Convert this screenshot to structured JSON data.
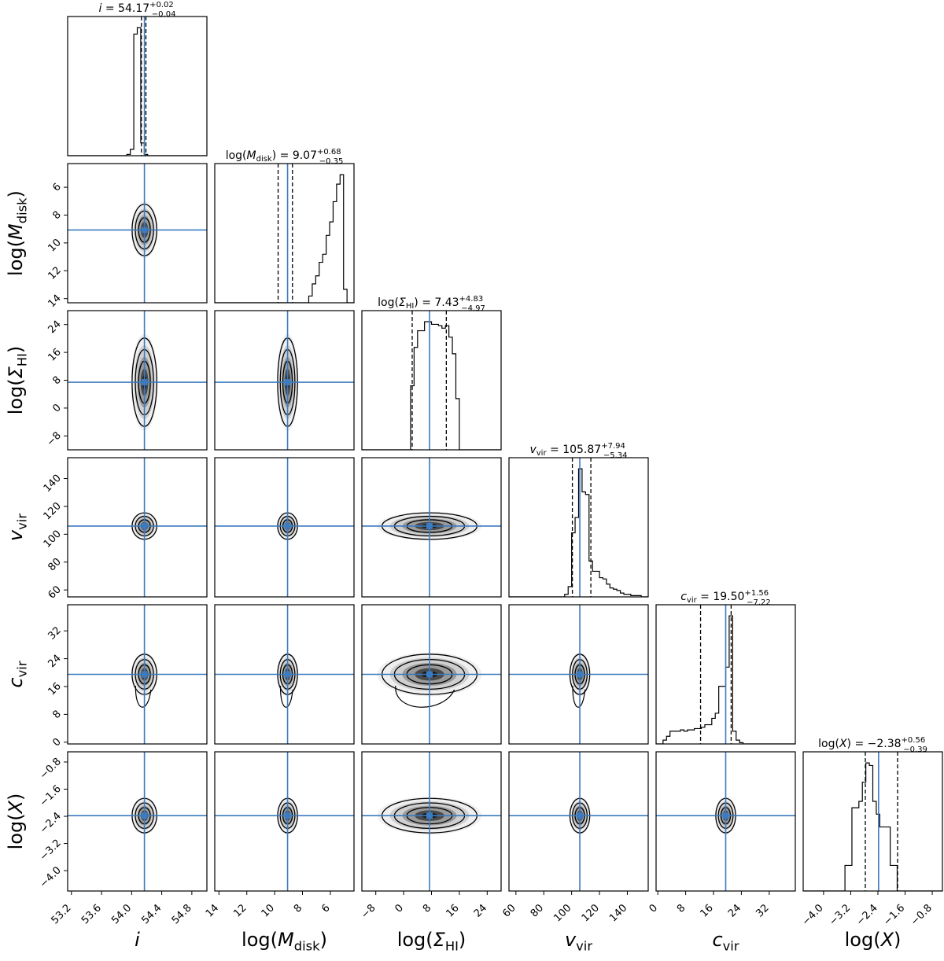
{
  "chart_data": {
    "type": "corner",
    "title": "",
    "truth_color": "#3b7bbf",
    "parameters": [
      {
        "key": "i",
        "base": "i",
        "sub": "",
        "wrap": "",
        "label_plain": "i",
        "ticks": [
          "53.2",
          "53.6",
          "54.0",
          "54.4",
          "54.8"
        ],
        "tick_values": [
          53.2,
          53.6,
          54.0,
          54.4,
          54.8
        ],
        "range": [
          53.15,
          55.0
        ],
        "reversed": false,
        "median": 54.17,
        "q16": 54.13,
        "q84": 54.19,
        "truth": 54.17,
        "title_text": "i = 54.17",
        "title_value": "= 54.17",
        "err_plus": "+0.02",
        "err_minus": "−0.04",
        "hist": [
          0,
          0,
          0,
          0,
          0,
          0,
          0,
          0,
          0,
          0,
          0,
          0,
          0,
          0,
          0,
          0,
          0,
          1,
          5,
          95,
          100,
          10,
          1,
          0,
          0,
          0,
          0,
          0,
          0,
          0,
          0,
          0,
          0,
          0,
          0,
          0,
          0,
          0,
          0,
          0
        ]
      },
      {
        "key": "mdisk",
        "base": "M",
        "sub": "disk",
        "wrap": "log",
        "label_plain": "log(M_disk)",
        "ticks": [
          "14",
          "12",
          "10",
          "8",
          "6"
        ],
        "tick_values": [
          14,
          12,
          10,
          8,
          6
        ],
        "range": [
          14.3,
          4.3
        ],
        "reversed": true,
        "median": 9.07,
        "q16": 9.75,
        "q84": 8.72,
        "truth": 9.07,
        "title_text": "log(M_disk) = 9.07",
        "title_value": "= 9.07",
        "err_plus": "+0.68",
        "err_minus": "−0.35",
        "hist": [
          0,
          0,
          0,
          0,
          0,
          0,
          0,
          0,
          0,
          0,
          0,
          0,
          0,
          0,
          0,
          0,
          0,
          0,
          0,
          0,
          0,
          0,
          0,
          0,
          0,
          0,
          0,
          5,
          14,
          20,
          30,
          36,
          50,
          60,
          75,
          88,
          95,
          10,
          0,
          0
        ]
      },
      {
        "key": "sigma",
        "base": "Σ",
        "sub": "HI",
        "wrap": "log",
        "label_plain": "log(Σ_HI)",
        "ticks": [
          "−8",
          "0",
          "8",
          "16",
          "24"
        ],
        "tick_values": [
          -8,
          0,
          8,
          16,
          24
        ],
        "range": [
          -12,
          28
        ],
        "reversed": false,
        "median": 7.43,
        "q16": 2.46,
        "q84": 12.26,
        "truth": 7.43,
        "title_text": "log(Σ_HI) = 7.43",
        "title_value": "= 7.43",
        "err_plus": "+4.83",
        "err_minus": "−4.97",
        "hist": [
          0,
          0,
          0,
          0,
          0,
          0,
          0,
          0,
          0,
          0,
          0,
          0,
          0,
          0,
          50,
          80,
          93,
          93,
          100,
          100,
          98,
          98,
          97,
          95,
          97,
          88,
          75,
          40,
          0,
          0,
          0,
          0,
          0,
          0,
          0,
          0,
          0,
          0,
          0,
          0
        ]
      },
      {
        "key": "vvir",
        "base": "v",
        "sub": "vir",
        "wrap": "",
        "label_plain": "v_vir",
        "ticks": [
          "60",
          "80",
          "100",
          "120",
          "140"
        ],
        "tick_values": [
          60,
          80,
          100,
          120,
          140
        ],
        "range": [
          55,
          155
        ],
        "reversed": false,
        "median": 105.87,
        "q16": 100.53,
        "q84": 113.81,
        "truth": 105.87,
        "title_text": "v_vir = 105.87",
        "title_value": "= 105.87",
        "err_plus": "+7.94",
        "err_minus": "−5.34",
        "hist": [
          0,
          0,
          0,
          0,
          0,
          0,
          0,
          0,
          0,
          0,
          0,
          0,
          0,
          0,
          0,
          0,
          2,
          8,
          50,
          62,
          100,
          82,
          80,
          28,
          20,
          20,
          15,
          14,
          10,
          7,
          6,
          5,
          3,
          2,
          2,
          1,
          1,
          1,
          0,
          0
        ]
      },
      {
        "key": "cvir",
        "base": "c",
        "sub": "vir",
        "wrap": "",
        "label_plain": "c_vir",
        "ticks": [
          "0",
          "8",
          "16",
          "24",
          "32"
        ],
        "tick_values": [
          0,
          8,
          16,
          24,
          32
        ],
        "range": [
          -0.5,
          39.5
        ],
        "reversed": false,
        "median": 19.5,
        "q16": 12.28,
        "q84": 21.06,
        "truth": 19.5,
        "title_text": "c_vir = 19.50",
        "title_value": "= 19.50",
        "err_plus": "+1.56",
        "err_minus": "−7.22",
        "hist": [
          0,
          0,
          3,
          6,
          10,
          10,
          10,
          11,
          10,
          11,
          11,
          12,
          12,
          13,
          15,
          15,
          20,
          24,
          45,
          45,
          60,
          100,
          10,
          3,
          1,
          0,
          0,
          0,
          0,
          0,
          0,
          0,
          0,
          0,
          0,
          0,
          0,
          0,
          0,
          0
        ]
      },
      {
        "key": "x",
        "base": "X",
        "sub": "",
        "wrap": "log",
        "label_plain": "log(X)",
        "ticks": [
          "−4.0",
          "−3.2",
          "−2.4",
          "−1.6",
          "−0.8"
        ],
        "tick_values": [
          -4.0,
          -3.2,
          -2.4,
          -1.6,
          -0.8
        ],
        "range": [
          -4.6,
          -0.5
        ],
        "reversed": false,
        "median": -2.38,
        "q16": -2.77,
        "q84": -1.82,
        "truth": -2.38,
        "title_text": "log(X) = −2.38",
        "title_value": "= −2.38",
        "err_plus": "+0.56",
        "err_minus": "−0.39",
        "hist": [
          0,
          0,
          0,
          0,
          0,
          0,
          0,
          0,
          0,
          0,
          0,
          0,
          20,
          20,
          65,
          65,
          70,
          85,
          100,
          98,
          70,
          60,
          50,
          50,
          50,
          20,
          20,
          0,
          0,
          0,
          0,
          0,
          0,
          0,
          0,
          0,
          0,
          0,
          0,
          0
        ]
      }
    ],
    "contour_scale": [
      {
        "sx": 0.06,
        "sy": 1.6
      },
      {
        "sx": 0.2,
        "sy": 0.8,
        "corr": 0.2
      },
      {
        "sx": 5,
        "sy": 5.5
      },
      {
        "sx": 0.06,
        "sy": 1.4
      },
      {
        "sx": 0.15,
        "sy": 2.5,
        "tail": true
      },
      {
        "sx": 0.06,
        "sy": 0.22
      }
    ]
  }
}
